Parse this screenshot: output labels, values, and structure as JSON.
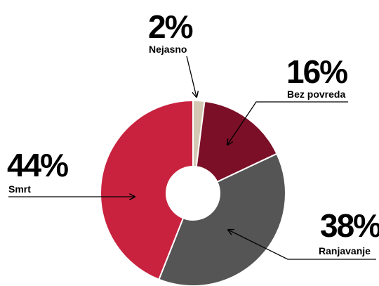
{
  "chart_data": {
    "type": "pie",
    "donut": true,
    "categories": [
      "Nejasno",
      "Bez povreda",
      "Ranjavanje",
      "Smrt"
    ],
    "values": [
      2,
      16,
      38,
      44
    ],
    "value_labels": [
      "2%",
      "16%",
      "38%",
      "44%"
    ],
    "colors": [
      "#d3c8b3",
      "#7b0f27",
      "#555555",
      "#c8223f"
    ],
    "start": "top, clockwise",
    "title": "",
    "legend": "none (callout labels with arrows)"
  }
}
